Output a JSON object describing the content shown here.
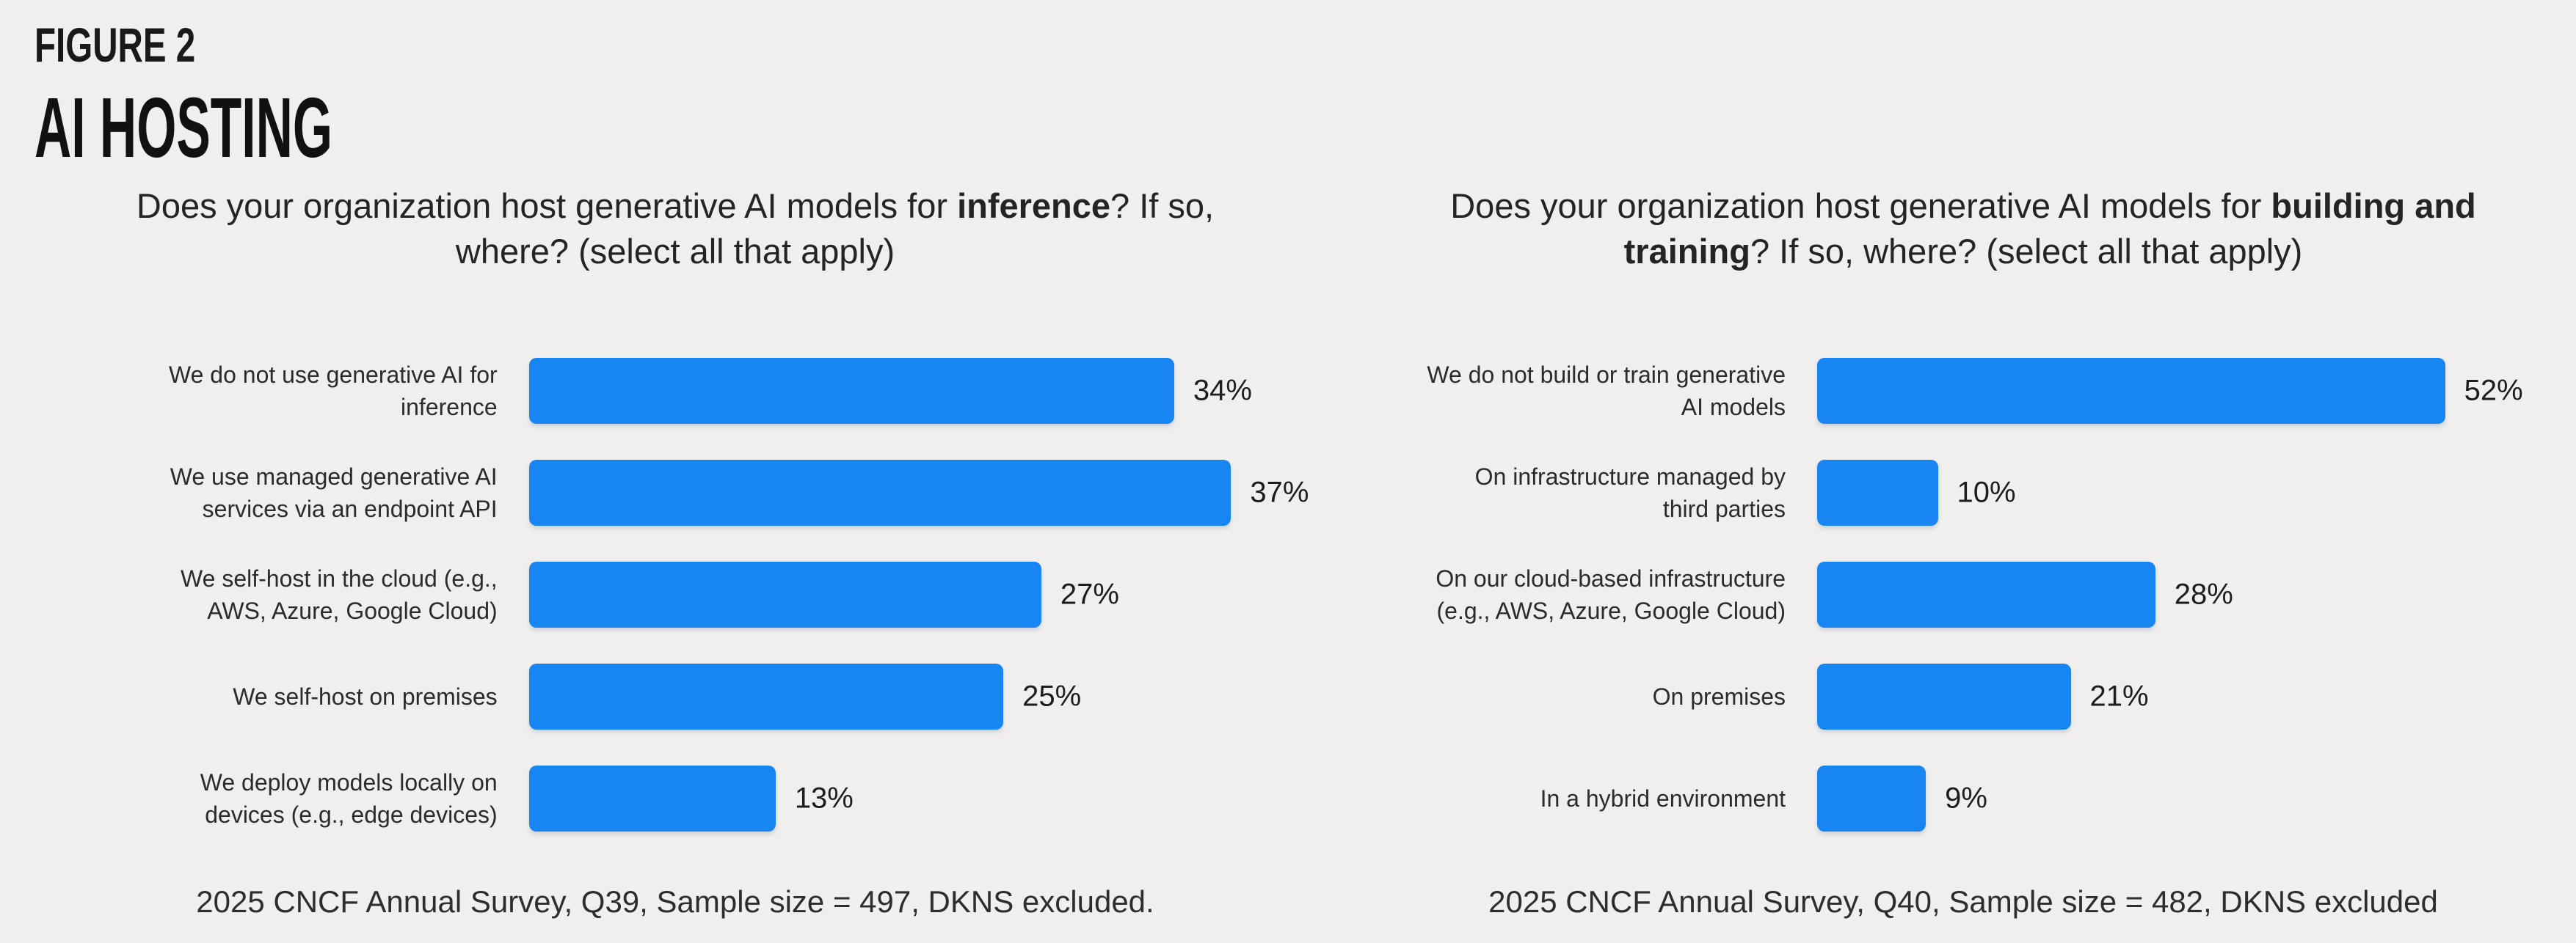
{
  "header": {
    "figure_label": "FIGURE 2",
    "title": "AI HOSTING"
  },
  "colors": {
    "background": "#f0efed",
    "bar": "#1786f2",
    "text": "#1d1d1d"
  },
  "chart_data": [
    {
      "type": "bar",
      "orientation": "horizontal",
      "title": "Does your organization host generative AI models for inference? If so, where? (select all that apply)",
      "title_parts": {
        "prefix": "Does your organization host generative AI models for ",
        "bold": "inference",
        "suffix": "? If so, where? (select all that apply)"
      },
      "categories": [
        "We do not use generative AI for\ninference",
        "We use managed generative AI\nservices via an endpoint API",
        "We self-host in the cloud (e.g.,\nAWS, Azure, Google Cloud)",
        "We self-host on premises",
        "We deploy models locally on\ndevices (e.g., edge devices)"
      ],
      "values": [
        34,
        37,
        27,
        25,
        13
      ],
      "value_labels": [
        "34%",
        "37%",
        "27%",
        "25%",
        "13%"
      ],
      "unit": "%",
      "xlim": [
        0,
        40
      ],
      "grid": false,
      "legend": false,
      "axes_hidden": true,
      "bar_color": "#1786f2",
      "caption": "2025 CNCF Annual Survey, Q39, Sample size = 497, DKNS excluded."
    },
    {
      "type": "bar",
      "orientation": "horizontal",
      "title": "Does your organization host generative AI models for building and training? If so, where? (select all that apply)",
      "title_parts": {
        "prefix": "Does your organization host generative AI models for ",
        "bold": "building and training",
        "suffix": "? If so, where? (select all that apply)"
      },
      "categories": [
        "We do not build or train generative\nAI models",
        "On infrastructure managed by\nthird parties",
        "On our cloud-based infrastructure\n(e.g., AWS, Azure, Google Cloud)",
        "On premises",
        "In a hybrid environment"
      ],
      "values": [
        52,
        10,
        28,
        21,
        9
      ],
      "value_labels": [
        "52%",
        "10%",
        "28%",
        "21%",
        "9%"
      ],
      "unit": "%",
      "xlim": [
        0,
        55
      ],
      "grid": false,
      "legend": false,
      "axes_hidden": true,
      "bar_color": "#1786f2",
      "caption": "2025 CNCF Annual Survey, Q40, Sample size = 482, DKNS excluded"
    }
  ]
}
